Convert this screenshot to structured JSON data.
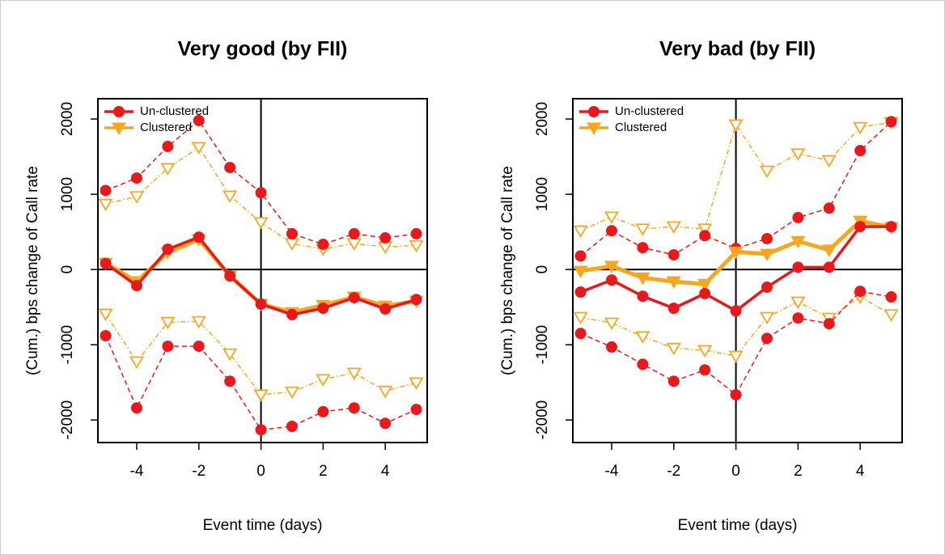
{
  "chart_data": [
    {
      "type": "line",
      "title": "Very good (by FII)",
      "xlabel": "Event time (days)",
      "ylabel": "(Cum.) bps change of Call rate",
      "x": [
        -5,
        -4,
        -3,
        -2,
        -1,
        0,
        1,
        2,
        3,
        4,
        5
      ],
      "series": [
        {
          "name": "Un-clustered",
          "color": "#e8191c",
          "marker": "circle",
          "values": [
            80,
            -215,
            270,
            430,
            -86,
            -460,
            -600,
            -515,
            -375,
            -525,
            -400
          ],
          "upper": [
            1050,
            1215,
            1635,
            1980,
            1355,
            1020,
            475,
            335,
            475,
            420,
            475
          ],
          "lower": [
            -880,
            -1840,
            -1020,
            -1020,
            -1485,
            -2130,
            -2085,
            -1890,
            -1840,
            -2045,
            -1860
          ]
        },
        {
          "name": "Clustered",
          "color": "#f5a623",
          "marker": "triangle-down",
          "values": [
            85,
            -160,
            225,
            400,
            -85,
            -460,
            -570,
            -475,
            -365,
            -485,
            -420
          ],
          "upper": [
            870,
            970,
            1345,
            1625,
            980,
            625,
            345,
            270,
            345,
            300,
            320
          ],
          "lower": [
            -590,
            -1225,
            -700,
            -690,
            -1120,
            -1665,
            -1625,
            -1460,
            -1375,
            -1615,
            -1505
          ]
        }
      ],
      "xlim": [
        -5.25,
        5.35
      ],
      "ylim": [
        -2300,
        2270
      ],
      "xticks": [
        -4,
        -2,
        0,
        2,
        4
      ],
      "yticks": [
        -2000,
        -1000,
        0,
        1000,
        2000
      ],
      "legend": "top-left"
    },
    {
      "type": "line",
      "title": "Very bad (by FII)",
      "xlabel": "Event time (days)",
      "ylabel": "(Cum.) bps change of Call rate",
      "x": [
        -5,
        -4,
        -3,
        -2,
        -1,
        0,
        1,
        2,
        3,
        4,
        5
      ],
      "series": [
        {
          "name": "Un-clustered",
          "color": "#e8191c",
          "marker": "circle",
          "values": [
            -300,
            -140,
            -355,
            -515,
            -320,
            -550,
            -235,
            30,
            30,
            570,
            570
          ],
          "upper": [
            180,
            515,
            290,
            195,
            450,
            280,
            410,
            690,
            815,
            1580,
            1965
          ],
          "lower": [
            -850,
            -1030,
            -1260,
            -1485,
            -1335,
            -1665,
            -915,
            -645,
            -720,
            -290,
            -365
          ]
        },
        {
          "name": "Clustered",
          "color": "#f5a623",
          "marker": "triangle-down",
          "values": [
            -20,
            45,
            -110,
            -160,
            -195,
            235,
            205,
            375,
            260,
            645,
            560
          ],
          "upper": [
            515,
            700,
            540,
            570,
            540,
            1925,
            1310,
            1540,
            1450,
            1890,
            1955
          ],
          "lower": [
            -635,
            -710,
            -890,
            -1045,
            -1075,
            -1150,
            -635,
            -430,
            -645,
            -365,
            -600
          ]
        }
      ],
      "xlim": [
        -5.25,
        5.35
      ],
      "ylim": [
        -2300,
        2270
      ],
      "xticks": [
        -4,
        -2,
        0,
        2,
        4
      ],
      "yticks": [
        -2000,
        -1000,
        0,
        1000,
        2000
      ],
      "legend": "top-left"
    }
  ]
}
